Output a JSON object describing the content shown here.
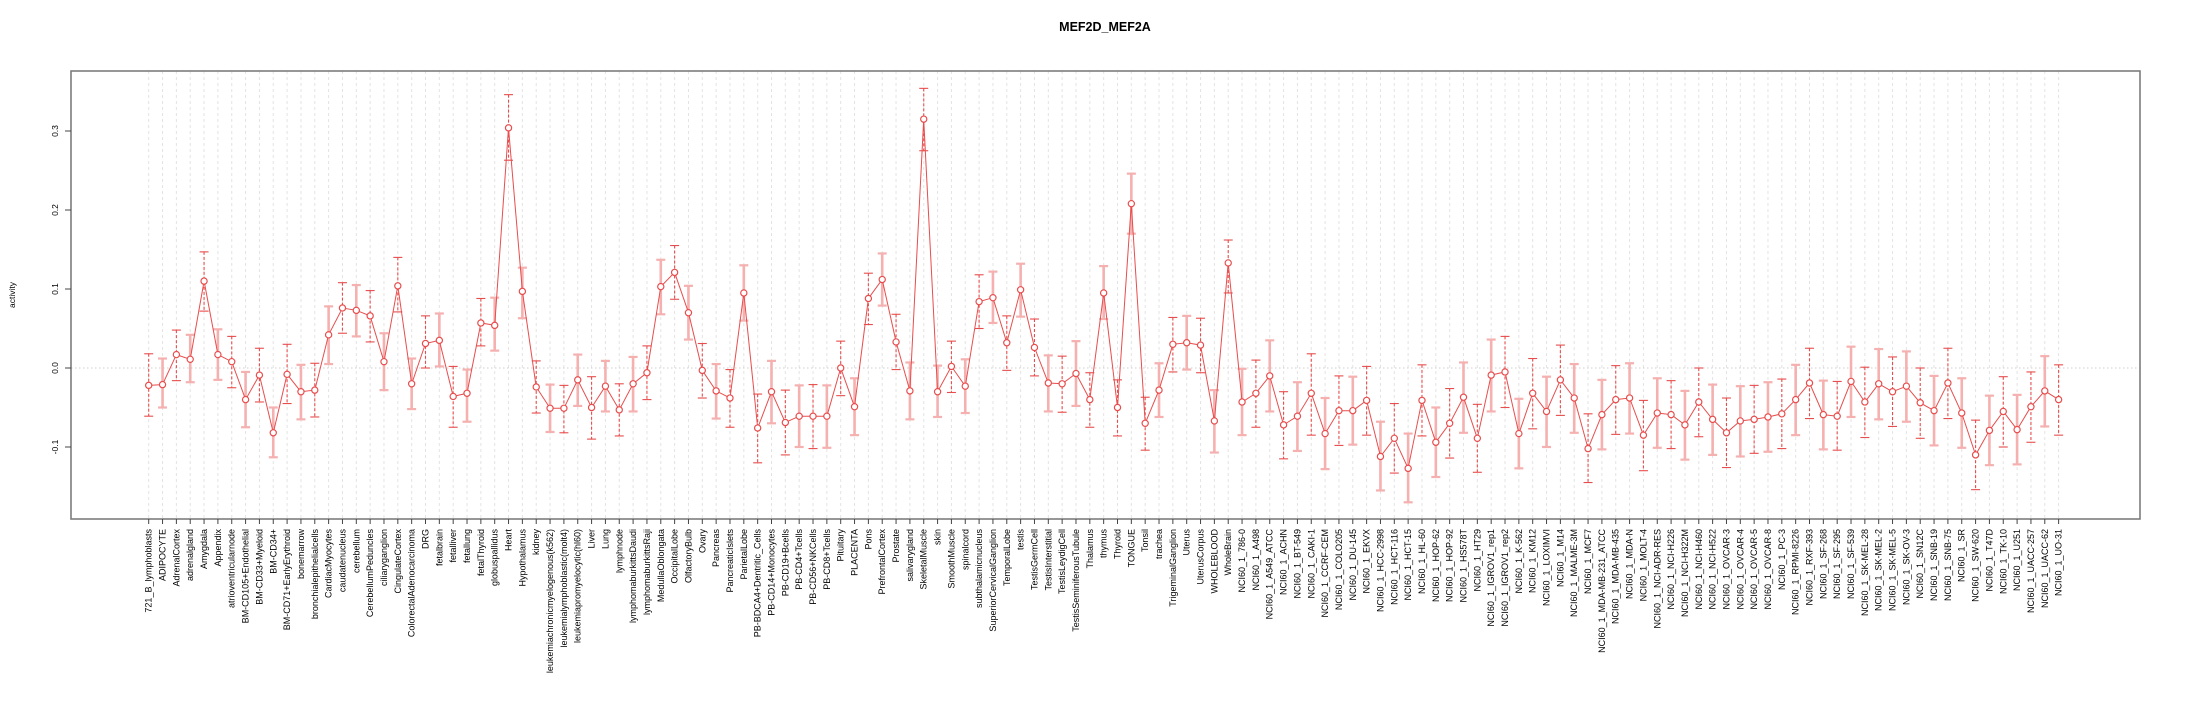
{
  "page": {
    "title": "MEF2D_MEF2A",
    "ylabel": "activity"
  },
  "chart_data": {
    "type": "scatter",
    "title": "MEF2D_MEF2A",
    "xlabel": "",
    "ylabel": "activity",
    "ylim": [
      -0.19,
      0.376
    ],
    "yticks": [
      -0.1,
      0.0,
      0.1,
      0.2,
      0.3
    ],
    "ytick_labels": [
      "-0.1",
      "0.0",
      "0.1",
      "0.2",
      "0.3"
    ],
    "grid": {
      "vertical_dashed": true,
      "zero_line_dotted": true,
      "legend": "none"
    },
    "style": {
      "point_color": "#e84d4d",
      "line_color": "#e84d4d",
      "errorbar_dark_color": "#e84d4d",
      "errorbar_pale_color": "#f5b0b0",
      "gridline_color": "#e3e3e3",
      "zero_line_color": "#cfcfcf",
      "axis_color": "#7d7d7d",
      "tick_color": "#444444",
      "label_color": "#000000"
    },
    "categories": [
      "721_B_lymphoblasts",
      "ADIPOCYTE",
      "AdrenalCortex",
      "adrenalgland",
      "Amygdala",
      "Appendix",
      "atrioventricularnode",
      "BM-CD105+Endothelial",
      "BM-CD33+Myeloid",
      "BM-CD34+",
      "BM-CD71+EarlyErythroid",
      "bonemarrow",
      "bronchialepithelialcells",
      "CardiacMyocytes",
      "caudatenucleus",
      "cerebellum",
      "CerebellumPeduncles",
      "ciliaryganglion",
      "CingulateCortex",
      "ColorectalAdenocarcinoma",
      "DRG",
      "fetalbrain",
      "fetalliver",
      "fetallung",
      "fetalThyroid",
      "globuspallidus",
      "Heart",
      "Hypothalamus",
      "kidney",
      "leukemiachronicmyelogenous(k562)",
      "leukemialymphoblastic(molt4)",
      "leukemiapromyelocytic(hl60)",
      "Liver",
      "Lung",
      "lymphnode",
      "lymphomaburkittsDaudi",
      "lymphomaburkittsRaji",
      "MedullaOblongata",
      "OccipitalLobe",
      "OlfactoryBulb",
      "Ovary",
      "Pancreas",
      "PancreaticIslets",
      "ParietalLobe",
      "PB-BDCA4+Dentritic_Cells",
      "PB-CD14+Monocytes",
      "PB-CD19+Bcells",
      "PB-CD4+Tcells",
      "PB-CD56+NKCells",
      "PB-CD8+Tcells",
      "Pituitary",
      "PLACENTA",
      "Pons",
      "PrefrontalCortex",
      "Prostate",
      "salivarygland",
      "SkeletalMuscle",
      "skin",
      "SmoothMuscle",
      "spinalcord",
      "subthalamicnucleus",
      "SuperiorCervicalGanglion",
      "TemporalLobe",
      "testis",
      "TestisGermCell",
      "TestisInterstitial",
      "TestisLeydigCell",
      "TestisSeminiferousTubule",
      "Thalamus",
      "thymus",
      "Thyroid",
      "TONGUE",
      "Tonsil",
      "trachea",
      "TrigeminalGanglion",
      "Uterus",
      "UterusCorpus",
      "WHOLEBLOOD",
      "WholeBrain",
      "NCI60_1_786-0",
      "NCI60_1_A498",
      "NCI60_1_A549_ATCC",
      "NCI60_1_ACHN",
      "NCI60_1_BT-549",
      "NCI60_1_CAKI-1",
      "NCI60_1_CCRF-CEM",
      "NCI60_1_COLO205",
      "NCI60_1_DU-145",
      "NCI60_1_EKVX",
      "NCI60_1_HCC-2998",
      "NCI60_1_HCT-116",
      "NCI60_1_HCT-15",
      "NCI60_1_HL-60",
      "NCI60_1_HOP-62",
      "NCI60_1_HOP-92",
      "NCI60_1_HS578T",
      "NCI60_1_HT29",
      "NCI60_1_IGROV1_rep1",
      "NCI60_1_IGROV1_rep2",
      "NCI60_1_K-562",
      "NCI60_1_KM12",
      "NCI60_1_LOXIMVI",
      "NCI60_1_M14",
      "NCI60_1_MALME-3M",
      "NCI60_1_MCF7",
      "NCI60_1_MDA-MB-231_ATCC",
      "NCI60_1_MDA-MB-435",
      "NCI60_1_MDA-N",
      "NCI60_1_MOLT-4",
      "NCI60_1_NCI-ADR-RES",
      "NCI60_1_NCI-H226",
      "NCI60_1_NCI-H322M",
      "NCI60_1_NCI-H460",
      "NCI60_1_NCI-H522",
      "NCI60_1_OVCAR-3",
      "NCI60_1_OVCAR-4",
      "NCI60_1_OVCAR-5",
      "NCI60_1_OVCAR-8",
      "NCI60_1_PC-3",
      "NCI60_1_RPMI-8226",
      "NCI60_1_RXF-393",
      "NCI60_1_SF-268",
      "NCI60_1_SF-295",
      "NCI60_1_SF-539",
      "NCI60_1_SK-MEL-28",
      "NCI60_1_SK-MEL-2",
      "NCI60_1_SK-MEL-5",
      "NCI60_1_SK-OV-3",
      "NCI60_1_SN12C",
      "NCI60_1_SNB-19",
      "NCI60_1_SNB-75",
      "NCI60_1_SR",
      "NCI60_1_SW-620",
      "NCI60_1_T47D",
      "NCI60_1_TK-10",
      "NCI60_1_U251",
      "NCI60_1_UACC-257",
      "NCI60_1_UACC-62",
      "NCI60_1_UO-31"
    ],
    "series": [
      {
        "name": "activity",
        "values": [
          -0.022,
          -0.021,
          0.017,
          0.011,
          0.11,
          0.017,
          0.008,
          -0.04,
          -0.009,
          -0.082,
          -0.008,
          -0.03,
          -0.028,
          0.042,
          0.076,
          0.073,
          0.066,
          0.008,
          0.104,
          -0.02,
          0.031,
          0.035,
          -0.036,
          -0.032,
          0.057,
          0.054,
          0.304,
          0.097,
          -0.024,
          -0.051,
          -0.051,
          -0.015,
          -0.05,
          -0.023,
          -0.053,
          -0.02,
          -0.006,
          0.103,
          0.121,
          0.07,
          -0.003,
          -0.029,
          -0.038,
          0.095,
          -0.076,
          -0.03,
          -0.069,
          -0.061,
          -0.061,
          -0.061,
          0.0,
          -0.049,
          0.088,
          0.112,
          0.033,
          -0.029,
          0.315,
          -0.03,
          0.002,
          -0.023,
          0.084,
          0.089,
          0.032,
          0.099,
          0.026,
          -0.019,
          -0.02,
          -0.007,
          -0.04,
          0.095,
          -0.05,
          0.208,
          -0.07,
          -0.028,
          0.03,
          0.032,
          0.029,
          -0.067,
          0.133,
          -0.043,
          -0.032,
          -0.01,
          -0.072,
          -0.061,
          -0.032,
          -0.083,
          -0.054,
          -0.054,
          -0.041,
          -0.112,
          -0.089,
          -0.127,
          -0.041,
          -0.094,
          -0.07,
          -0.037,
          -0.089,
          -0.009,
          -0.005,
          -0.083,
          -0.032,
          -0.055,
          -0.015,
          -0.038,
          -0.102,
          -0.059,
          -0.04,
          -0.038,
          -0.085,
          -0.057,
          -0.059,
          -0.072,
          -0.043,
          -0.065,
          -0.082,
          -0.067,
          -0.065,
          -0.062,
          -0.058,
          -0.04,
          -0.019,
          -0.059,
          -0.061,
          -0.017,
          -0.043,
          -0.02,
          -0.03,
          -0.023,
          -0.044,
          -0.054,
          -0.019,
          -0.057,
          -0.11,
          -0.079,
          -0.055,
          -0.078,
          -0.049,
          -0.029,
          -0.04
        ],
        "err_lo": [
          -0.061,
          -0.05,
          -0.016,
          -0.018,
          0.072,
          -0.015,
          -0.025,
          -0.075,
          -0.043,
          -0.113,
          -0.045,
          -0.065,
          -0.062,
          0.005,
          0.044,
          0.04,
          0.033,
          -0.028,
          0.071,
          -0.052,
          0.0,
          0.002,
          -0.075,
          -0.068,
          0.028,
          0.022,
          0.263,
          0.063,
          -0.057,
          -0.081,
          -0.082,
          -0.048,
          -0.09,
          -0.055,
          -0.086,
          -0.055,
          -0.04,
          0.068,
          0.087,
          0.036,
          -0.038,
          -0.064,
          -0.075,
          0.06,
          -0.12,
          -0.07,
          -0.11,
          -0.1,
          -0.102,
          -0.101,
          -0.035,
          -0.085,
          0.055,
          0.079,
          -0.002,
          -0.065,
          0.275,
          -0.062,
          -0.031,
          -0.057,
          0.05,
          0.057,
          -0.003,
          0.065,
          -0.01,
          -0.055,
          -0.056,
          -0.048,
          -0.075,
          0.062,
          -0.086,
          0.17,
          -0.104,
          -0.062,
          -0.005,
          -0.002,
          -0.006,
          -0.107,
          0.095,
          -0.085,
          -0.075,
          -0.055,
          -0.115,
          -0.105,
          -0.085,
          -0.128,
          -0.098,
          -0.097,
          -0.085,
          -0.155,
          -0.133,
          -0.17,
          -0.086,
          -0.138,
          -0.114,
          -0.082,
          -0.132,
          -0.055,
          -0.05,
          -0.127,
          -0.077,
          -0.1,
          -0.06,
          -0.082,
          -0.145,
          -0.103,
          -0.084,
          -0.083,
          -0.13,
          -0.101,
          -0.102,
          -0.116,
          -0.087,
          -0.11,
          -0.126,
          -0.112,
          -0.108,
          -0.106,
          -0.102,
          -0.085,
          -0.064,
          -0.103,
          -0.104,
          -0.062,
          -0.088,
          -0.065,
          -0.074,
          -0.068,
          -0.089,
          -0.098,
          -0.064,
          -0.101,
          -0.154,
          -0.123,
          -0.1,
          -0.122,
          -0.094,
          -0.074,
          -0.085
        ],
        "err_hi": [
          0.018,
          0.012,
          0.048,
          0.042,
          0.147,
          0.049,
          0.04,
          -0.005,
          0.025,
          -0.05,
          0.03,
          0.004,
          0.006,
          0.078,
          0.108,
          0.105,
          0.098,
          0.044,
          0.14,
          0.012,
          0.066,
          0.069,
          0.002,
          -0.002,
          0.088,
          0.089,
          0.346,
          0.127,
          0.009,
          -0.021,
          -0.022,
          0.017,
          -0.011,
          0.009,
          -0.02,
          0.014,
          0.028,
          0.137,
          0.155,
          0.104,
          0.031,
          0.005,
          -0.002,
          0.13,
          -0.033,
          0.009,
          -0.028,
          -0.022,
          -0.021,
          -0.022,
          0.034,
          -0.013,
          0.12,
          0.145,
          0.068,
          0.007,
          0.354,
          0.003,
          0.034,
          0.011,
          0.118,
          0.122,
          0.066,
          0.132,
          0.062,
          0.016,
          0.015,
          0.034,
          -0.006,
          0.129,
          -0.015,
          0.246,
          -0.037,
          0.006,
          0.064,
          0.066,
          0.063,
          -0.028,
          0.162,
          -0.001,
          0.01,
          0.035,
          -0.03,
          -0.018,
          0.018,
          -0.038,
          -0.01,
          -0.011,
          0.002,
          -0.068,
          -0.045,
          -0.083,
          0.004,
          -0.05,
          -0.026,
          0.007,
          -0.046,
          0.036,
          0.04,
          -0.039,
          0.012,
          -0.011,
          0.029,
          0.005,
          -0.058,
          -0.015,
          0.003,
          0.006,
          -0.041,
          -0.013,
          -0.016,
          -0.029,
          0.0,
          -0.021,
          -0.038,
          -0.023,
          -0.022,
          -0.018,
          -0.014,
          0.004,
          0.025,
          -0.016,
          -0.017,
          0.027,
          0.001,
          0.024,
          0.014,
          0.021,
          0.0,
          -0.01,
          0.025,
          -0.013,
          -0.066,
          -0.035,
          -0.011,
          -0.034,
          -0.005,
          0.015,
          0.004
        ]
      }
    ]
  }
}
